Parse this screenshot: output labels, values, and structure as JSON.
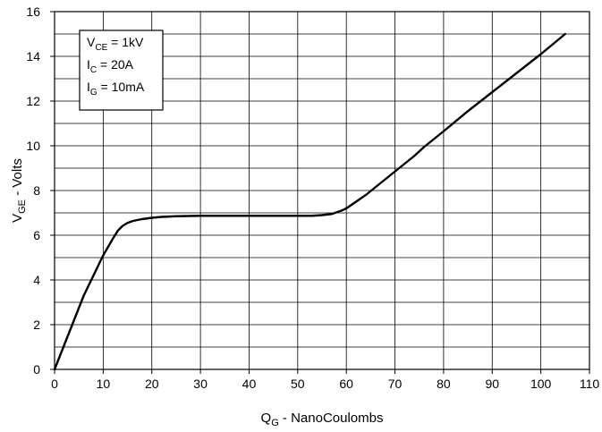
{
  "chart_data": {
    "type": "line",
    "title": "",
    "xlabel": {
      "main": "Q",
      "sub": "G",
      "rest": " - NanoCoulombs"
    },
    "ylabel": {
      "main": "V",
      "sub": "GE",
      "rest": " - Volts"
    },
    "xlim": [
      0,
      110
    ],
    "ylim": [
      0,
      16
    ],
    "x_ticks": [
      0,
      10,
      20,
      30,
      40,
      50,
      60,
      70,
      80,
      90,
      100,
      110
    ],
    "y_ticks": [
      0,
      2,
      4,
      6,
      8,
      10,
      12,
      14,
      16
    ],
    "x_minor_step": 10,
    "y_minor_step": 1,
    "grid": true,
    "legend_position": "top-left",
    "conditions": [
      {
        "main": "V",
        "sub": "CE",
        "rest": " = 1kV"
      },
      {
        "main": "I",
        "sub": "C",
        "rest": " = 20A"
      },
      {
        "main": "I",
        "sub": "G",
        "rest": " = 10mA"
      }
    ],
    "series": [
      {
        "color": "#000000",
        "x": [
          0,
          2,
          4,
          6,
          8,
          10,
          12,
          13,
          14,
          15,
          16,
          17,
          18,
          20,
          22,
          25,
          30,
          40,
          50,
          53,
          55,
          57,
          59,
          60,
          62,
          64,
          66,
          68,
          70,
          72,
          74,
          76,
          80,
          85,
          90,
          95,
          100,
          105
        ],
        "y": [
          0,
          1.1,
          2.2,
          3.3,
          4.2,
          5.1,
          5.85,
          6.2,
          6.42,
          6.55,
          6.63,
          6.68,
          6.72,
          6.78,
          6.82,
          6.85,
          6.87,
          6.87,
          6.87,
          6.87,
          6.9,
          6.95,
          7.1,
          7.2,
          7.5,
          7.8,
          8.15,
          8.5,
          8.85,
          9.2,
          9.55,
          9.95,
          10.65,
          11.55,
          12.4,
          13.25,
          14.1,
          15.0
        ]
      }
    ]
  }
}
